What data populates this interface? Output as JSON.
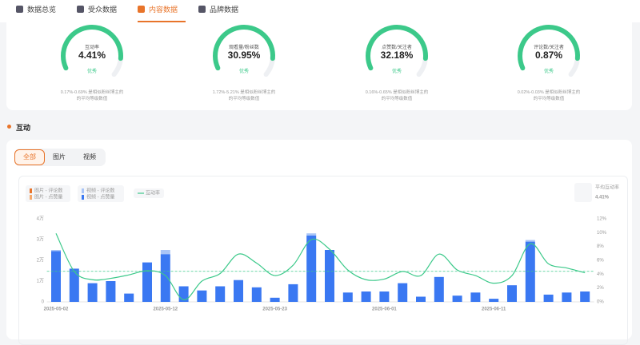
{
  "tabs": [
    "数据总览",
    "受众数据",
    "内容数据",
    "品牌数据"
  ],
  "gauges": [
    {
      "label": "互动率",
      "value": "4.41%",
      "rating": "优秀",
      "note": "0.17%-0.69% 是相似粉丝博主的的平均等级数值"
    },
    {
      "label": "观看量/粉丝数",
      "value": "30.95%",
      "rating": "优秀",
      "note": "1.72%-5.21% 是相似粉丝博主的的平均等级数值"
    },
    {
      "label": "点赞数/关注者",
      "value": "32.18%",
      "rating": "优秀",
      "note": "0.16%-0.65% 是相似粉丝博主的的平均等级数值"
    },
    {
      "label": "评论数/关注者",
      "value": "0.87%",
      "rating": "优秀",
      "note": "0.02%-0.03% 是相似粉丝博主的的平均等级数值"
    }
  ],
  "section_title": "互动",
  "filters": [
    "全部",
    "图片",
    "视频"
  ],
  "chart_data": {
    "type": "bar",
    "categories": [
      "2025-05-02",
      null,
      null,
      null,
      null,
      null,
      "2025-05-12",
      null,
      null,
      null,
      null,
      null,
      "2025-05-23",
      null,
      null,
      null,
      null,
      null,
      "2025-06-01",
      null,
      null,
      null,
      null,
      null,
      "2025-06-11",
      null,
      null,
      null,
      null,
      null
    ],
    "series": [
      {
        "name": "图片 - 评论数",
        "color": "#e8742a",
        "values": [
          0,
          0,
          0,
          0,
          0,
          0,
          0,
          0,
          0,
          0,
          0,
          0,
          0,
          0,
          0,
          0,
          0,
          0,
          0,
          0,
          0,
          0,
          0,
          0,
          0,
          0,
          0,
          0,
          0,
          0
        ]
      },
      {
        "name": "图片 - 点赞量",
        "color": "#f5a86b",
        "values": [
          0,
          0,
          0,
          0,
          0,
          0,
          0,
          0,
          0,
          0,
          0,
          0,
          0,
          0,
          0,
          0,
          0,
          0,
          0,
          0,
          0,
          0,
          0,
          0,
          0,
          0,
          0,
          0,
          0,
          0
        ]
      },
      {
        "name": "视频 - 评论数",
        "color": "#a9c5f7",
        "values": [
          500,
          0,
          0,
          0,
          0,
          0,
          2000,
          0,
          0,
          0,
          0,
          0,
          0,
          0,
          1000,
          0,
          0,
          0,
          0,
          0,
          0,
          0,
          0,
          0,
          0,
          0,
          800,
          0,
          0,
          0
        ]
      },
      {
        "name": "视频 - 点赞量",
        "color": "#3a78f2",
        "values": [
          24500,
          16000,
          9000,
          10000,
          4000,
          19000,
          23000,
          7500,
          5500,
          7500,
          10500,
          7000,
          2000,
          8500,
          32000,
          25000,
          4500,
          5000,
          5000,
          9000,
          2500,
          12000,
          3000,
          4500,
          1500,
          8000,
          29000,
          3500,
          4500,
          5000
        ]
      },
      {
        "name": "互动率",
        "type": "line",
        "axis": "y2",
        "color": "#3cc98a",
        "values": [
          9.9,
          4.4,
          3.2,
          3.4,
          3.9,
          4.5,
          3.8,
          0.3,
          3.0,
          4.1,
          6.9,
          5.6,
          3.8,
          5.3,
          9.0,
          7.6,
          4.6,
          3.2,
          3.3,
          4.4,
          3.8,
          6.9,
          4.6,
          3.8,
          2.7,
          3.8,
          8.4,
          5.5,
          4.9,
          4.2
        ]
      }
    ],
    "ylim": [
      0,
      40000
    ],
    "yticks": [
      {
        "value": 0,
        "label": "0"
      },
      {
        "value": 10000,
        "label": "1万"
      },
      {
        "value": 20000,
        "label": "2万"
      },
      {
        "value": 30000,
        "label": "3万"
      },
      {
        "value": 40000,
        "label": "4万"
      }
    ],
    "y2lim": [
      0,
      12
    ],
    "y2ticks": [
      {
        "value": 0,
        "label": "0%"
      },
      {
        "value": 2,
        "label": "2%"
      },
      {
        "value": 4,
        "label": "4%"
      },
      {
        "value": 6,
        "label": "6%"
      },
      {
        "value": 8,
        "label": "8%"
      },
      {
        "value": 10,
        "label": "10%"
      },
      {
        "value": 12,
        "label": "12%"
      }
    ],
    "grid": false,
    "average": {
      "title": "平均互动率",
      "value": 4.41,
      "label": "4.41%",
      "color": "#3cc98a"
    }
  }
}
